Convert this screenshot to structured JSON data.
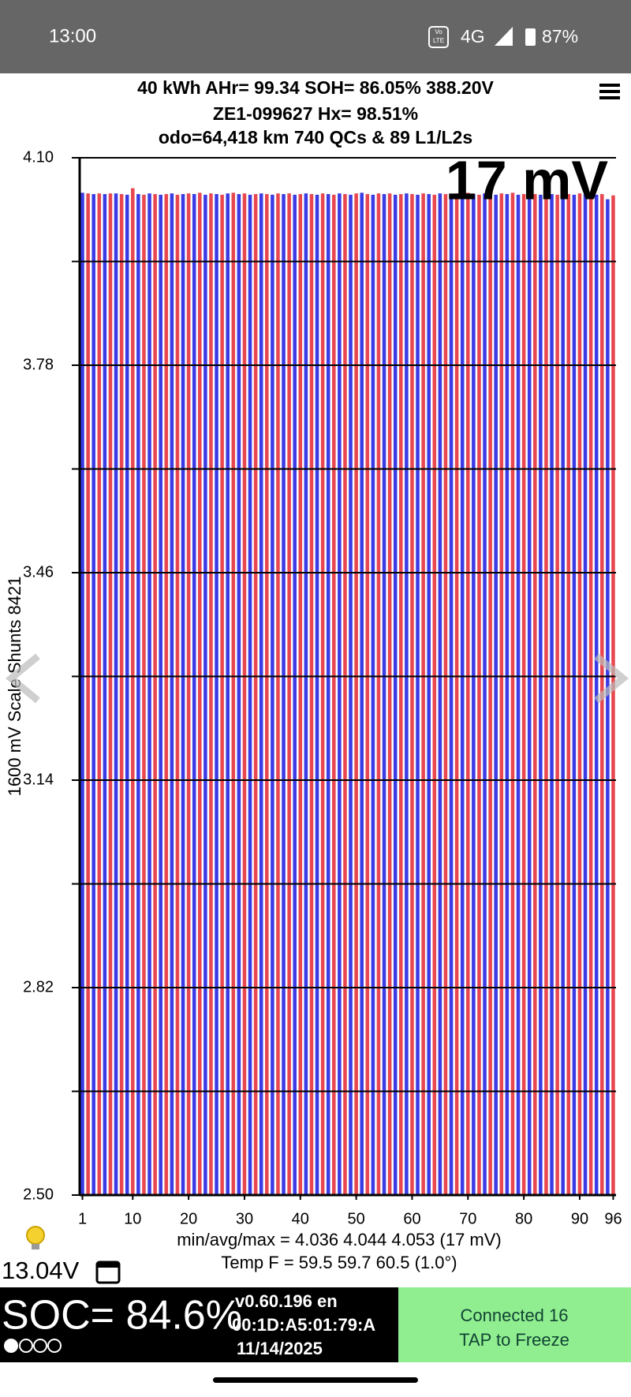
{
  "status_bar": {
    "time": "13:00",
    "volte_top": "Vo",
    "volte_bottom": "LTE",
    "network": "4G",
    "battery": "87%"
  },
  "header": {
    "line1": "40 kWh  AHr= 99.34  SOH= 86.05%   388.20V",
    "line2": "ZE1-099627   Hx= 98.51%",
    "line3": "odo=64,418 km 740 QCs & 89 L1/L2s"
  },
  "chart_data": {
    "type": "bar",
    "spread_label": "17 mV",
    "y_label": "1600 mV Scale  Shunts 8421",
    "x": [
      1,
      2,
      3,
      4,
      5,
      6,
      7,
      8,
      9,
      10,
      11,
      12,
      13,
      14,
      15,
      16,
      17,
      18,
      19,
      20,
      21,
      22,
      23,
      24,
      25,
      26,
      27,
      28,
      29,
      30,
      31,
      32,
      33,
      34,
      35,
      36,
      37,
      38,
      39,
      40,
      41,
      42,
      43,
      44,
      45,
      46,
      47,
      48,
      49,
      50,
      51,
      52,
      53,
      54,
      55,
      56,
      57,
      58,
      59,
      60,
      61,
      62,
      63,
      64,
      65,
      66,
      67,
      68,
      69,
      70,
      71,
      72,
      73,
      74,
      75,
      76,
      77,
      78,
      79,
      80,
      81,
      82,
      83,
      84,
      85,
      86,
      87,
      88,
      89,
      90,
      91,
      92,
      93,
      94,
      95,
      96
    ],
    "values": [
      4.046,
      4.045,
      4.044,
      4.045,
      4.044,
      4.045,
      4.045,
      4.044,
      4.043,
      4.053,
      4.044,
      4.043,
      4.045,
      4.044,
      4.043,
      4.044,
      4.045,
      4.043,
      4.044,
      4.045,
      4.044,
      4.046,
      4.043,
      4.045,
      4.044,
      4.043,
      4.045,
      4.046,
      4.044,
      4.045,
      4.043,
      4.044,
      4.045,
      4.044,
      4.043,
      4.045,
      4.044,
      4.045,
      4.043,
      4.044,
      4.045,
      4.044,
      4.043,
      4.045,
      4.044,
      4.043,
      4.045,
      4.044,
      4.043,
      4.045,
      4.046,
      4.044,
      4.043,
      4.045,
      4.044,
      4.045,
      4.043,
      4.044,
      4.045,
      4.044,
      4.043,
      4.045,
      4.044,
      4.043,
      4.045,
      4.044,
      4.043,
      4.045,
      4.044,
      4.046,
      4.044,
      4.043,
      4.045,
      4.044,
      4.043,
      4.045,
      4.044,
      4.046,
      4.043,
      4.044,
      4.045,
      4.044,
      4.043,
      4.045,
      4.044,
      4.043,
      4.045,
      4.044,
      4.043,
      4.045,
      4.044,
      4.045,
      4.043,
      4.044,
      4.036,
      4.042
    ],
    "colors": [
      "#3b3be6",
      "#e8474f"
    ],
    "xlim": [
      0.5,
      96.5
    ],
    "xticks": [
      1,
      10,
      20,
      30,
      40,
      50,
      60,
      70,
      80,
      90,
      96
    ],
    "ylim": [
      2.5,
      4.1
    ],
    "yticks": [
      {
        "value": 4.1,
        "label": "4.10"
      },
      3.78,
      3.46,
      3.14,
      2.82,
      {
        "value": 2.5,
        "label": "2.50"
      }
    ],
    "yticks_minor": [
      3.94,
      3.62,
      3.3,
      2.98,
      2.66
    ],
    "grid": true
  },
  "footer": {
    "stats": "min/avg/max = 4.036 4.044 4.053  (17 mV)",
    "temp": "Temp F = 59.5  59.7  60.5  (1.0°)",
    "aux_voltage": "13.04V"
  },
  "bottom_bar": {
    "soc": "SOC= 84.6%",
    "version": "v0.60.196 en",
    "mac": "00:1D:A5:01:79:A",
    "date": "11/14/2025",
    "status": "Connected 16",
    "action": "TAP to Freeze"
  }
}
